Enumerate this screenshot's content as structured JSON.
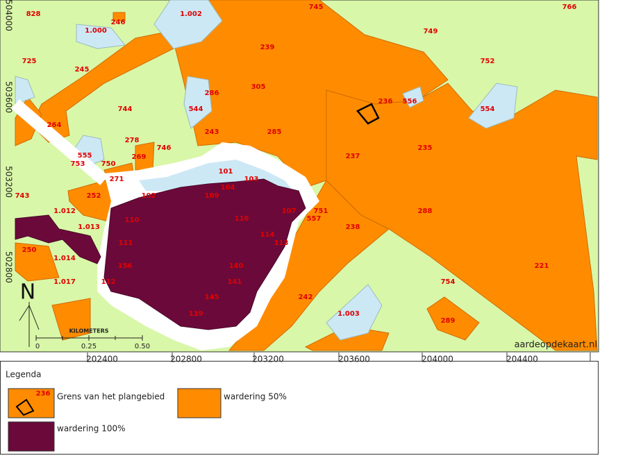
{
  "map": {
    "y_labels": [
      "504000",
      "503600",
      "503200",
      "502800"
    ],
    "x_labels": [
      "202400",
      "202800",
      "203200",
      "203600",
      "204000",
      "204400"
    ],
    "parcel_labels": [
      "828",
      "246",
      "1.000",
      "1.002",
      "745",
      "766",
      "749",
      "725",
      "245",
      "239",
      "752",
      "305",
      "286",
      "236",
      "556",
      "744",
      "544",
      "554",
      "264",
      "243",
      "285",
      "278",
      "746",
      "235",
      "269",
      "555",
      "237",
      "753",
      "750",
      "101",
      "271",
      "104",
      "103",
      "743",
      "252",
      "102",
      "109",
      "288",
      "1.012",
      "751",
      "107",
      "557",
      "1.013",
      "110",
      "238",
      "116",
      "250",
      "114",
      "113",
      "111",
      "1.014",
      "221",
      "156",
      "1.017",
      "754",
      "112",
      "145",
      "242",
      "1.003",
      "289",
      "139",
      "140",
      "141"
    ],
    "north": "N",
    "scale": {
      "unit": "KILOMETERS",
      "ticks": [
        "0",
        "0.25",
        "0.50"
      ]
    },
    "credit": "aardeopdekaart.nl"
  },
  "legend": {
    "title": "Legenda",
    "items": [
      {
        "label": "Grens van het plangebied",
        "sample_label": "236"
      },
      {
        "label": "wardering 50%"
      },
      {
        "label": "wardering 100%"
      }
    ]
  }
}
